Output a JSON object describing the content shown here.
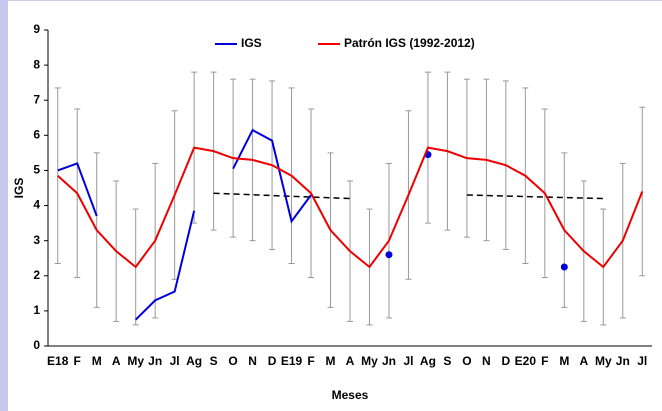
{
  "chart_data": {
    "type": "line",
    "y_label": "IGS",
    "x_label": "Meses",
    "categories": [
      "E18",
      "F",
      "M",
      "A",
      "My",
      "Jn",
      "Jl",
      "Ag",
      "S",
      "O",
      "N",
      "D",
      "E19",
      "F",
      "M",
      "A",
      "My",
      "Jn",
      "Jl",
      "Ag",
      "S",
      "O",
      "N",
      "D",
      "E20",
      "F",
      "M",
      "A",
      "My",
      "Jn",
      "Jl"
    ],
    "series": [
      {
        "name": "IGS",
        "color": "#0000dd",
        "values": [
          5.0,
          5.2,
          3.7,
          null,
          0.75,
          1.3,
          1.55,
          3.85,
          null,
          5.05,
          6.15,
          5.85,
          3.55,
          4.3,
          null,
          null,
          null,
          2.6,
          null,
          5.45,
          null,
          null,
          null,
          null,
          null,
          null,
          2.25,
          null,
          null,
          null,
          null
        ]
      },
      {
        "name": "Patrón IGS (1992-2012)",
        "color": "#ee0000",
        "values": [
          4.85,
          4.35,
          3.3,
          2.7,
          2.25,
          3.0,
          4.3,
          5.65,
          5.55,
          5.35,
          5.3,
          5.15,
          4.85,
          4.35,
          3.3,
          2.7,
          2.25,
          3.0,
          4.3,
          5.65,
          5.55,
          5.35,
          5.3,
          5.15,
          4.85,
          4.35,
          3.3,
          2.7,
          2.25,
          3.0,
          4.4
        ],
        "error": [
          2.5,
          2.4,
          2.2,
          2.0,
          1.65,
          2.2,
          2.4,
          2.15,
          2.25,
          2.25,
          2.3,
          2.4,
          2.5,
          2.4,
          2.2,
          2.0,
          1.65,
          2.2,
          2.4,
          2.15,
          2.25,
          2.25,
          2.3,
          2.4,
          2.5,
          2.4,
          2.2,
          2.0,
          1.65,
          2.2,
          2.4
        ]
      }
    ],
    "trend_lines": [
      {
        "x": [
          8,
          15
        ],
        "values": [
          4.35,
          4.2
        ]
      },
      {
        "x": [
          21,
          28
        ],
        "values": [
          4.3,
          4.2
        ]
      }
    ],
    "ylim": [
      0,
      9
    ],
    "yticks": [
      0,
      1,
      2,
      3,
      4,
      5,
      6,
      7,
      8,
      9
    ],
    "legend": "top"
  }
}
